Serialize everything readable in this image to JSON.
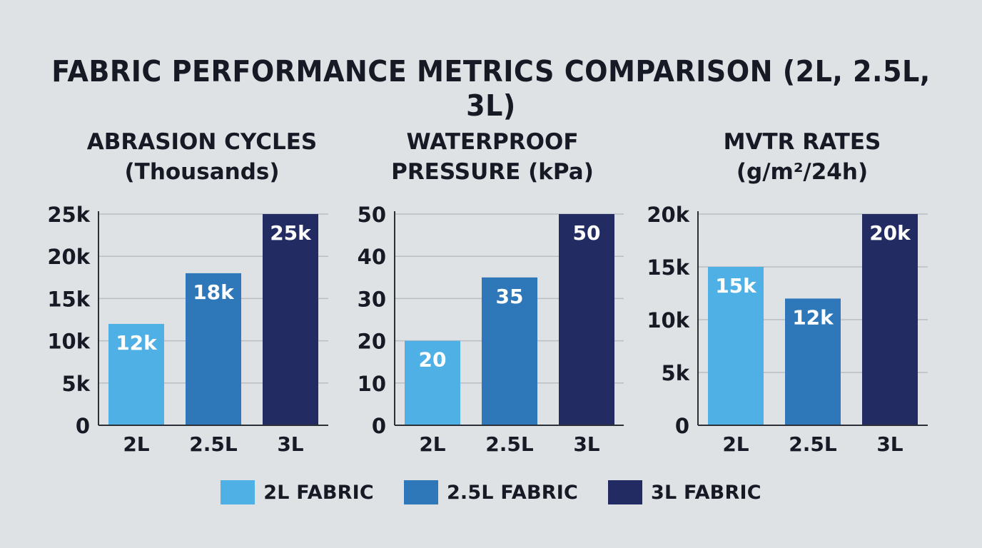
{
  "title": "FABRIC PERFORMANCE METRICS COMPARISON (2L, 2.5L, 3L)",
  "colors": {
    "2L": "#4fb0e5",
    "2.5L": "#2e78ba",
    "3L": "#232b63",
    "grid": "#b9bec5",
    "axis": "#2a2f38",
    "bar_label": "#ffffff"
  },
  "chart_data": [
    {
      "type": "bar",
      "title_lines": [
        "ABRASION CYCLES",
        "(Thousands)"
      ],
      "categories": [
        "2L",
        "2.5L",
        "3L"
      ],
      "values": [
        12,
        18,
        25
      ],
      "value_labels": [
        "12k",
        "18k",
        "25k"
      ],
      "ylim": [
        0,
        25
      ],
      "yticks": [
        0,
        5,
        10,
        15,
        20,
        25
      ],
      "ytick_labels": [
        "0",
        "5k",
        "10k",
        "15k",
        "20k",
        "25k"
      ],
      "grid": true
    },
    {
      "type": "bar",
      "title_lines": [
        "WATERPROOF",
        "PRESSURE (kPa)"
      ],
      "categories": [
        "2L",
        "2.5L",
        "3L"
      ],
      "values": [
        20,
        35,
        50
      ],
      "value_labels": [
        "20",
        "35",
        "50"
      ],
      "ylim": [
        0,
        50
      ],
      "yticks": [
        0,
        10,
        20,
        30,
        40,
        50
      ],
      "ytick_labels": [
        "0",
        "10",
        "20",
        "30",
        "40",
        "50"
      ],
      "grid": true
    },
    {
      "type": "bar",
      "title_lines": [
        "MVTR RATES",
        "(g/m²/24h)"
      ],
      "categories": [
        "2L",
        "2.5L",
        "3L"
      ],
      "values": [
        15,
        12,
        20
      ],
      "value_labels": [
        "15k",
        "12k",
        "20k"
      ],
      "ylim": [
        0,
        20
      ],
      "yticks": [
        0,
        5,
        10,
        15,
        20
      ],
      "ytick_labels": [
        "0",
        "5k",
        "10k",
        "15k",
        "20k"
      ],
      "grid": true
    }
  ],
  "legend": {
    "placement": "bottom-center",
    "items": [
      {
        "key": "2L",
        "label": "2L FABRIC"
      },
      {
        "key": "2.5L",
        "label": "2.5L FABRIC"
      },
      {
        "key": "3L",
        "label": "3L FABRIC"
      }
    ]
  }
}
